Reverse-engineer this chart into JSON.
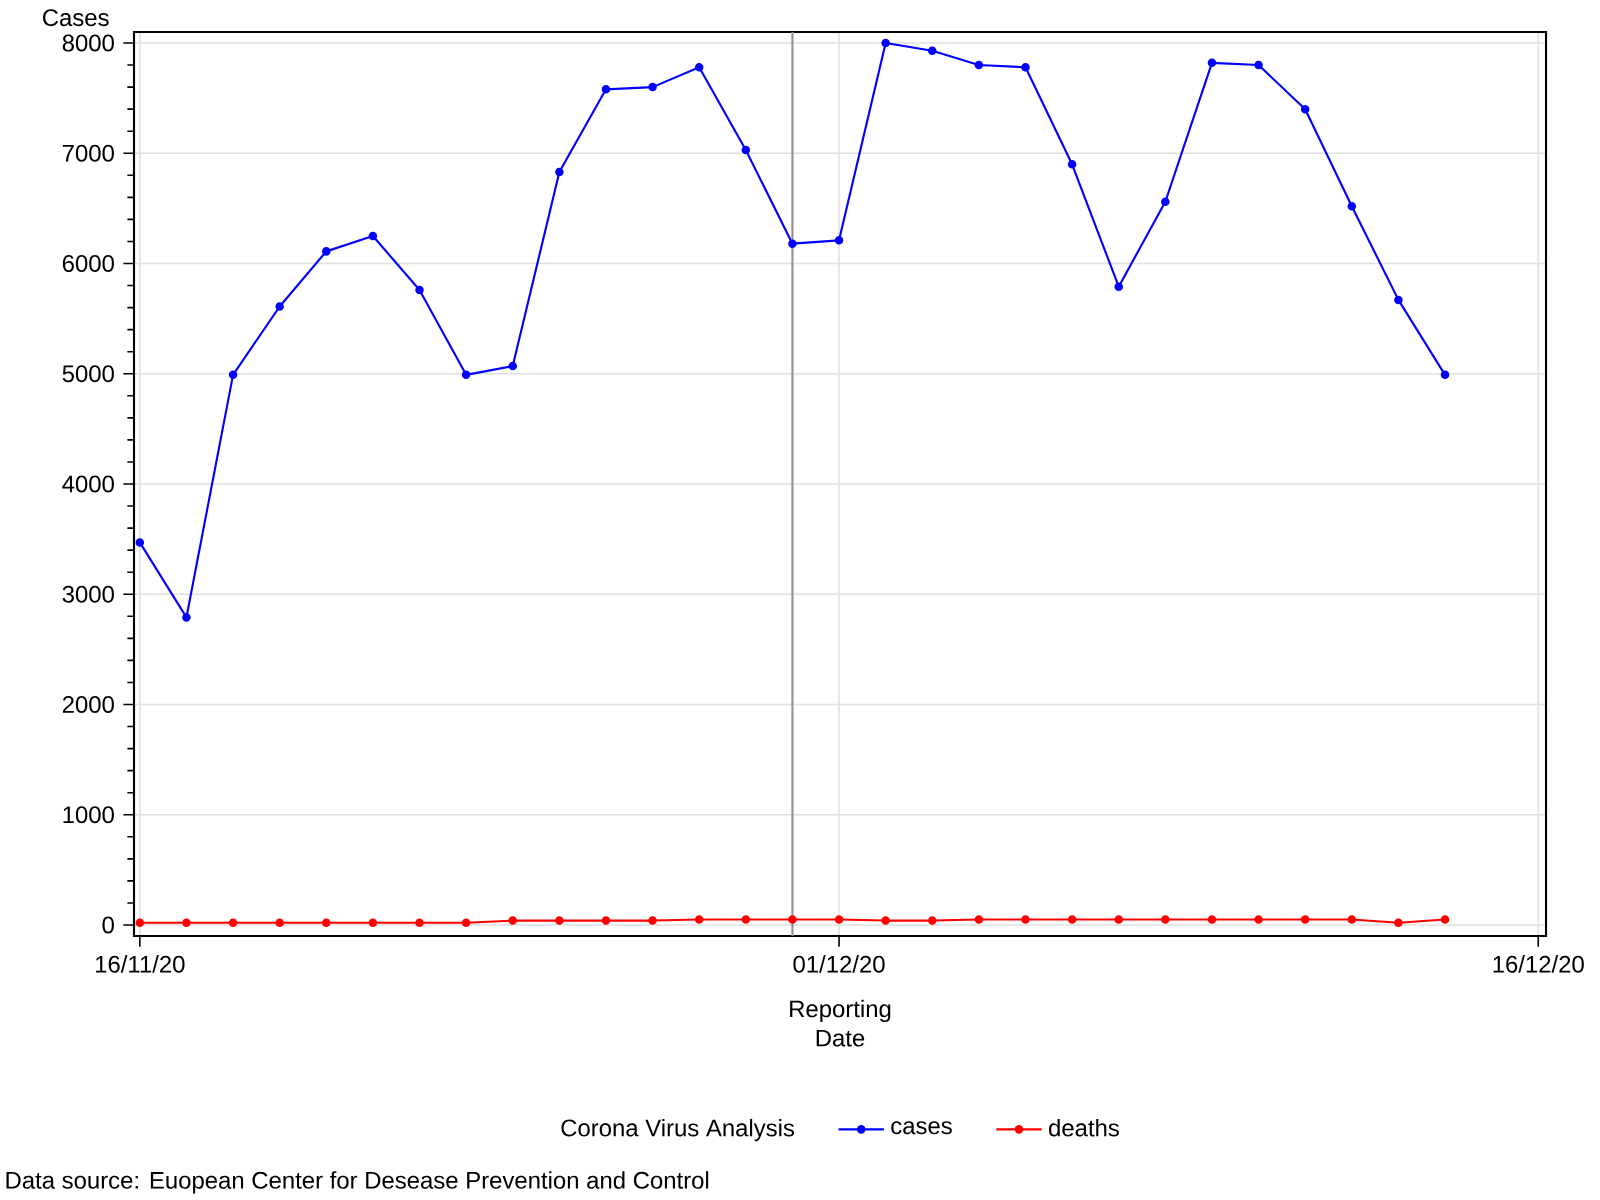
{
  "chart_data": {
    "type": "line",
    "x": [
      "2020-11-16",
      "2020-11-17",
      "2020-11-18",
      "2020-11-19",
      "2020-11-20",
      "2020-11-21",
      "2020-11-22",
      "2020-11-23",
      "2020-11-24",
      "2020-11-25",
      "2020-11-26",
      "2020-11-27",
      "2020-11-28",
      "2020-11-29",
      "2020-11-30",
      "2020-12-01",
      "2020-12-02",
      "2020-12-03",
      "2020-12-04",
      "2020-12-05",
      "2020-12-06",
      "2020-12-07",
      "2020-12-08",
      "2020-12-09",
      "2020-12-10",
      "2020-12-11",
      "2020-12-12",
      "2020-12-13",
      "2020-12-14"
    ],
    "series": [
      {
        "name": "cases",
        "color": "#0000ff",
        "values": [
          3470,
          2790,
          4990,
          5610,
          6110,
          6250,
          5760,
          4990,
          5070,
          6830,
          7580,
          7600,
          7780,
          7030,
          6180,
          6210,
          8000,
          7930,
          7800,
          7780,
          6900,
          5790,
          6560,
          7820,
          7800,
          7400,
          6520,
          5670,
          4990
        ]
      },
      {
        "name": "deaths",
        "color": "#ff0000",
        "values": [
          20,
          20,
          20,
          20,
          20,
          20,
          20,
          20,
          40,
          40,
          40,
          40,
          50,
          50,
          50,
          50,
          40,
          40,
          50,
          50,
          50,
          50,
          50,
          50,
          50,
          50,
          50,
          20,
          50
        ]
      }
    ],
    "xlabel": "Reporting Date",
    "ylabel": "Cases",
    "legend_title": "Corona Virus Analysis",
    "xlim": [
      "2020-11-15T21:00",
      "2020-12-16T04:00"
    ],
    "xticks": [
      {
        "value": "2020-11-16",
        "label": "16/11/20"
      },
      {
        "value": "2020-12-01",
        "label": "01/12/20"
      },
      {
        "value": "2020-12-16",
        "label": "16/12/20"
      }
    ],
    "ylim": [
      -100,
      8100
    ],
    "yticks": [
      0,
      1000,
      2000,
      3000,
      4000,
      5000,
      6000,
      7000,
      8000
    ],
    "ref_lines": [
      {
        "axis": "x",
        "value": "2020-11-30",
        "color": "#909098"
      }
    ],
    "grid": true,
    "legend": "bottom",
    "marker": "circle",
    "line_style": "solid",
    "annotations": [
      "Data source: Euopean Center for Desease Prevention and Control"
    ]
  }
}
